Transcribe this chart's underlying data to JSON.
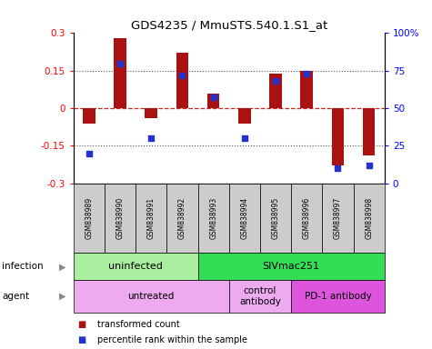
{
  "title": "GDS4235 / MmuSTS.540.1.S1_at",
  "samples": [
    "GSM838989",
    "GSM838990",
    "GSM838991",
    "GSM838992",
    "GSM838993",
    "GSM838994",
    "GSM838995",
    "GSM838996",
    "GSM838997",
    "GSM838998"
  ],
  "transformed_count": [
    -0.06,
    0.28,
    -0.04,
    0.22,
    0.06,
    -0.06,
    0.14,
    0.15,
    -0.23,
    -0.19
  ],
  "percentile_rank": [
    20,
    80,
    30,
    72,
    57,
    30,
    68,
    73,
    10,
    12
  ],
  "ylim": [
    -0.3,
    0.3
  ],
  "y2lim": [
    0,
    100
  ],
  "yticks": [
    -0.3,
    -0.15,
    0,
    0.15,
    0.3
  ],
  "y2ticks": [
    0,
    25,
    50,
    75,
    100
  ],
  "bar_color": "#AA1111",
  "dot_color": "#2233CC",
  "zero_line_color": "#CC2222",
  "dotted_line_color": "#555555",
  "infection_labels": [
    {
      "text": "uninfected",
      "start": 0,
      "end": 3,
      "color": "#AAEEA0"
    },
    {
      "text": "SIVmac251",
      "start": 4,
      "end": 9,
      "color": "#33DD55"
    }
  ],
  "agent_labels": [
    {
      "text": "untreated",
      "start": 0,
      "end": 4,
      "color": "#EEAAEE"
    },
    {
      "text": "control\nantibody",
      "start": 5,
      "end": 6,
      "color": "#EEAAEE"
    },
    {
      "text": "PD-1 antibody",
      "start": 7,
      "end": 9,
      "color": "#DD55DD"
    }
  ],
  "legend": [
    "transformed count",
    "percentile rank within the sample"
  ],
  "sample_bg_color": "#CCCCCC"
}
